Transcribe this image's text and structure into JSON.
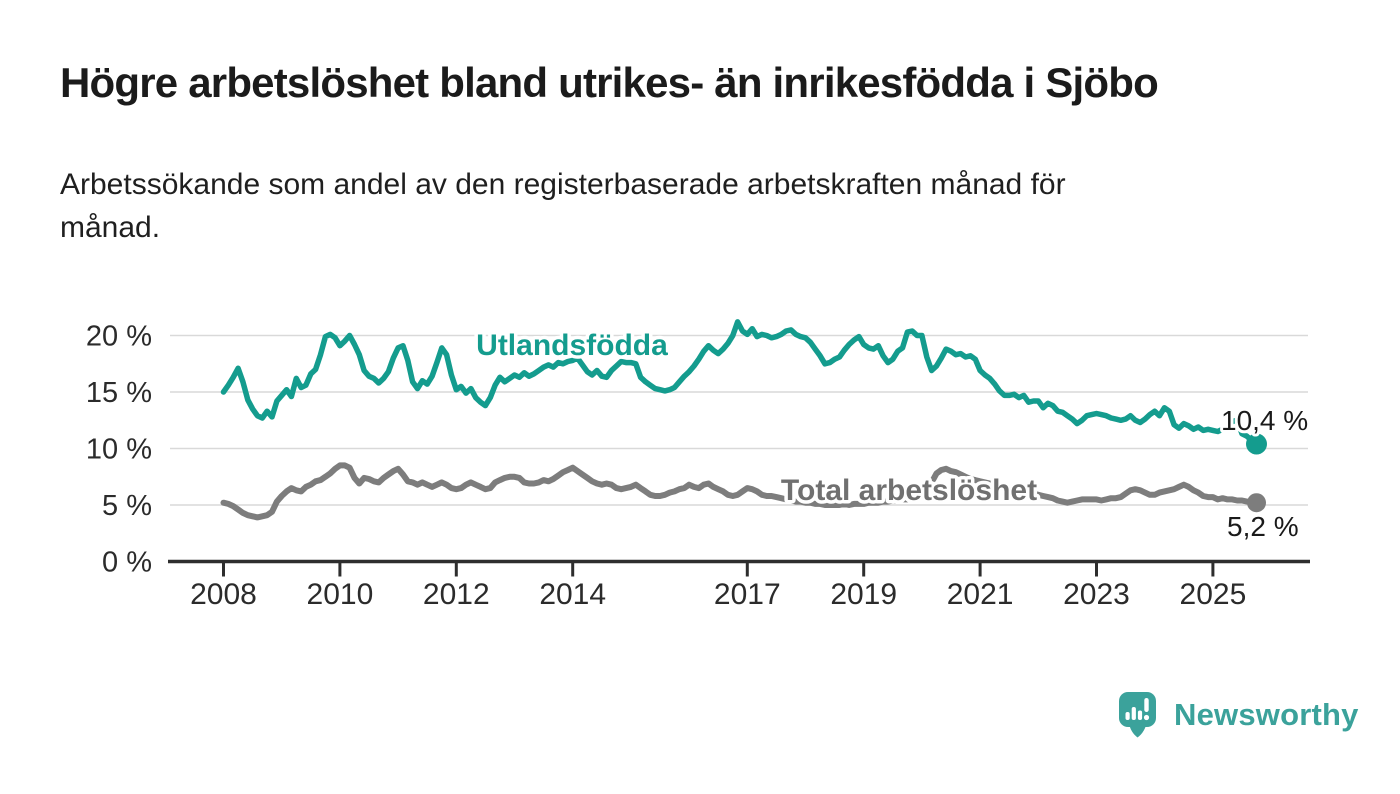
{
  "header": {
    "title": "Högre arbetslöshet bland utrikes- än inrikesfödda i Sjöbo",
    "subtitle": "Arbetssökande som andel av den registerbaserade arbetskraften månad för\nmånad."
  },
  "chart_data": {
    "type": "line",
    "title": "Högre arbetslöshet bland utrikes- än inrikesfödda i Sjöbo",
    "subtitle": "Arbetssökande som andel av den registerbaserade arbetskraften månad för månad.",
    "x_unit": "month",
    "x_start": "2008-01",
    "x_end": "2025-10",
    "ylim": [
      0,
      22
    ],
    "grid": "horizontal",
    "grid_color": "#d9d9d9",
    "axis_color": "#2e2e2e",
    "yticks": [
      {
        "value": 0,
        "label": "0 %"
      },
      {
        "value": 5,
        "label": "5 %"
      },
      {
        "value": 10,
        "label": "10 %"
      },
      {
        "value": 15,
        "label": "15 %"
      },
      {
        "value": 20,
        "label": "20 %"
      }
    ],
    "xticks": [
      {
        "year": 2008,
        "label": "2008"
      },
      {
        "year": 2010,
        "label": "2010"
      },
      {
        "year": 2012,
        "label": "2012"
      },
      {
        "year": 2014,
        "label": "2014"
      },
      {
        "year": 2017,
        "label": "2017"
      },
      {
        "year": 2019,
        "label": "2019"
      },
      {
        "year": 2021,
        "label": "2021"
      },
      {
        "year": 2023,
        "label": "2023"
      },
      {
        "year": 2025,
        "label": "2025"
      }
    ],
    "series": [
      {
        "name": "Utlandsfödda",
        "color": "#149c8e",
        "end_label": "10,4 %",
        "end_value": 10.4,
        "values": [
          15.0,
          15.6,
          16.3,
          17.1,
          15.9,
          14.3,
          13.5,
          12.9,
          12.7,
          13.3,
          12.8,
          14.2,
          14.7,
          15.2,
          14.6,
          16.2,
          15.4,
          15.6,
          16.6,
          17.0,
          18.3,
          19.9,
          20.1,
          19.8,
          19.1,
          19.5,
          20.0,
          19.2,
          18.3,
          16.9,
          16.4,
          16.2,
          15.8,
          16.2,
          16.8,
          18.0,
          18.9,
          19.1,
          17.8,
          15.9,
          15.3,
          16.0,
          15.7,
          16.4,
          17.6,
          18.9,
          18.3,
          16.5,
          15.2,
          15.5,
          14.9,
          15.3,
          14.5,
          14.1,
          13.8,
          14.5,
          15.6,
          16.3,
          15.9,
          16.2,
          16.5,
          16.3,
          16.7,
          16.4,
          16.6,
          16.9,
          17.2,
          17.4,
          17.2,
          17.6,
          17.5,
          17.7,
          17.8,
          18.0,
          17.4,
          16.8,
          16.5,
          16.9,
          16.4,
          16.3,
          16.9,
          17.3,
          17.7,
          17.6,
          17.6,
          17.5,
          16.3,
          15.9,
          15.6,
          15.3,
          15.2,
          15.1,
          15.2,
          15.4,
          15.9,
          16.4,
          16.8,
          17.3,
          17.9,
          18.6,
          19.1,
          18.7,
          18.4,
          18.8,
          19.3,
          20.0,
          21.2,
          20.4,
          20.1,
          20.6,
          19.9,
          20.1,
          20.0,
          19.8,
          19.9,
          20.1,
          20.4,
          20.5,
          20.1,
          19.9,
          19.8,
          19.4,
          18.8,
          18.2,
          17.5,
          17.6,
          17.9,
          18.1,
          18.7,
          19.2,
          19.6,
          19.9,
          19.2,
          18.9,
          18.8,
          19.1,
          18.2,
          17.6,
          17.9,
          18.6,
          18.9,
          20.3,
          20.4,
          20.0,
          20.0,
          18.1,
          16.9,
          17.3,
          18.0,
          18.8,
          18.6,
          18.3,
          18.4,
          18.1,
          18.2,
          17.9,
          16.9,
          16.5,
          16.2,
          15.7,
          15.1,
          14.7,
          14.7,
          14.8,
          14.5,
          14.7,
          14.1,
          14.2,
          14.2,
          13.6,
          14.0,
          13.8,
          13.3,
          13.2,
          12.9,
          12.6,
          12.2,
          12.5,
          12.9,
          13.0,
          13.1,
          13.0,
          12.9,
          12.7,
          12.6,
          12.5,
          12.6,
          12.9,
          12.5,
          12.3,
          12.6,
          13.0,
          13.3,
          12.9,
          13.6,
          13.3,
          12.1,
          11.8,
          12.2,
          12.0,
          11.7,
          11.9,
          11.6,
          11.7,
          11.6,
          11.5,
          11.7,
          11.9,
          12.4,
          12.5,
          11.3,
          11.1,
          10.7,
          10.4
        ]
      },
      {
        "name": "Total arbetslöshet",
        "color": "#7d7d7d",
        "end_label": "5,2 %",
        "end_value": 5.2,
        "values": [
          5.2,
          5.1,
          4.9,
          4.6,
          4.3,
          4.1,
          4.0,
          3.9,
          4.0,
          4.1,
          4.4,
          5.3,
          5.8,
          6.2,
          6.5,
          6.3,
          6.2,
          6.6,
          6.8,
          7.1,
          7.2,
          7.5,
          7.8,
          8.2,
          8.5,
          8.5,
          8.3,
          7.4,
          6.9,
          7.4,
          7.3,
          7.1,
          7.0,
          7.4,
          7.7,
          8.0,
          8.2,
          7.7,
          7.1,
          7.0,
          6.8,
          7.0,
          6.8,
          6.6,
          6.8,
          7.0,
          6.8,
          6.5,
          6.4,
          6.5,
          6.8,
          7.0,
          6.8,
          6.6,
          6.4,
          6.5,
          7.0,
          7.2,
          7.4,
          7.5,
          7.5,
          7.4,
          7.0,
          6.9,
          6.9,
          7.0,
          7.2,
          7.1,
          7.3,
          7.6,
          7.9,
          8.1,
          8.3,
          8.0,
          7.7,
          7.4,
          7.1,
          6.9,
          6.8,
          6.9,
          6.8,
          6.5,
          6.4,
          6.5,
          6.6,
          6.8,
          6.5,
          6.2,
          5.9,
          5.8,
          5.8,
          5.9,
          6.1,
          6.2,
          6.4,
          6.5,
          6.8,
          6.6,
          6.5,
          6.8,
          6.9,
          6.6,
          6.4,
          6.2,
          5.9,
          5.8,
          5.9,
          6.2,
          6.5,
          6.4,
          6.2,
          5.9,
          5.8,
          5.8,
          5.7,
          5.6,
          5.5,
          5.4,
          5.3,
          5.3,
          5.2,
          5.2,
          5.1,
          5.1,
          5.0,
          5.0,
          5.0,
          5.0,
          5.1,
          5.0,
          5.1,
          5.1,
          5.1,
          5.2,
          5.2,
          5.2,
          5.3,
          5.3,
          5.4,
          5.4,
          5.5,
          5.5,
          5.6,
          5.8,
          6.0,
          6.3,
          7.0,
          7.8,
          8.1,
          8.2,
          8.0,
          7.9,
          7.7,
          7.5,
          7.3,
          7.2,
          7.1,
          7.0,
          6.9,
          6.7,
          6.6,
          6.5,
          6.5,
          6.4,
          6.3,
          6.2,
          6.1,
          6.0,
          5.9,
          5.8,
          5.7,
          5.6,
          5.4,
          5.3,
          5.2,
          5.3,
          5.4,
          5.5,
          5.5,
          5.5,
          5.5,
          5.4,
          5.5,
          5.6,
          5.6,
          5.7,
          6.0,
          6.3,
          6.4,
          6.3,
          6.1,
          5.9,
          5.9,
          6.1,
          6.2,
          6.3,
          6.4,
          6.6,
          6.8,
          6.6,
          6.3,
          6.1,
          5.8,
          5.7,
          5.7,
          5.5,
          5.6,
          5.5,
          5.5,
          5.4,
          5.4,
          5.3,
          5.3,
          5.2
        ]
      }
    ],
    "legend_position": "inline-labels"
  },
  "footer": {
    "brand": "Newsworthy"
  },
  "colors": {
    "accent_teal": "#149c8e",
    "logo_teal": "#3ba29b",
    "series_gray": "#7d7d7d",
    "grid": "#d9d9d9",
    "axis": "#2e2e2e",
    "text": "#1b1b1b"
  }
}
